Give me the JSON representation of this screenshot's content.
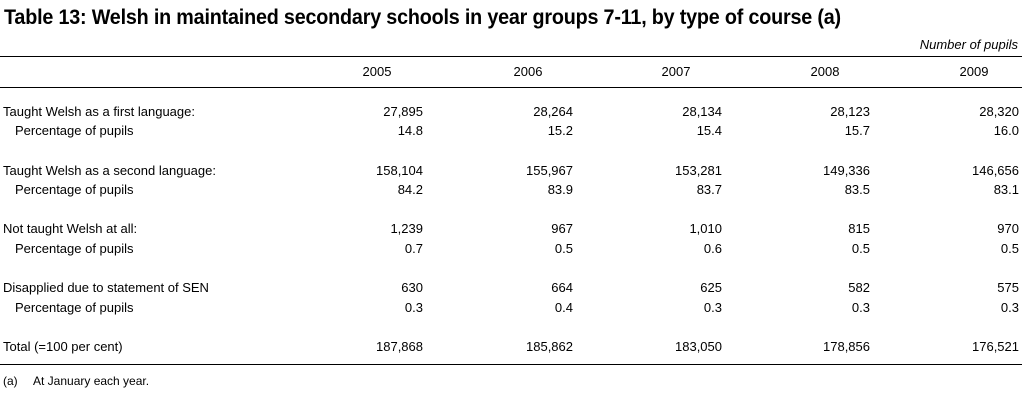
{
  "title": "Table 13: Welsh in maintained secondary schools in year groups 7-11, by type of course (a)",
  "units": "Number of pupils",
  "years": [
    "2005",
    "2006",
    "2007",
    "2008",
    "2009"
  ],
  "rows": [
    {
      "label": "Taught Welsh as a first language:",
      "values": [
        "27,895",
        "28,264",
        "28,134",
        "28,123",
        "28,320"
      ]
    },
    {
      "label": "Percentage of pupils",
      "values": [
        "14.8",
        "15.2",
        "15.4",
        "15.7",
        "16.0"
      ]
    },
    {
      "label": "Taught Welsh as a second language:",
      "values": [
        "158,104",
        "155,967",
        "153,281",
        "149,336",
        "146,656"
      ]
    },
    {
      "label": "Percentage of pupils",
      "values": [
        "84.2",
        "83.9",
        "83.7",
        "83.5",
        "83.1"
      ]
    },
    {
      "label": "Not taught Welsh at all:",
      "values": [
        "1,239",
        "967",
        "1,010",
        "815",
        "970"
      ]
    },
    {
      "label": "Percentage of pupils",
      "values": [
        "0.7",
        "0.5",
        "0.6",
        "0.5",
        "0.5"
      ]
    },
    {
      "label": "Disapplied due to statement of SEN",
      "values": [
        "630",
        "664",
        "625",
        "582",
        "575"
      ]
    },
    {
      "label": "Percentage of pupils",
      "values": [
        "0.3",
        "0.4",
        "0.3",
        "0.3",
        "0.3"
      ]
    },
    {
      "label": "Total (=100 per cent)",
      "values": [
        "187,868",
        "185,862",
        "183,050",
        "178,856",
        "176,521"
      ]
    }
  ],
  "footnote": {
    "mark": "(a)",
    "text": "At January each year."
  }
}
